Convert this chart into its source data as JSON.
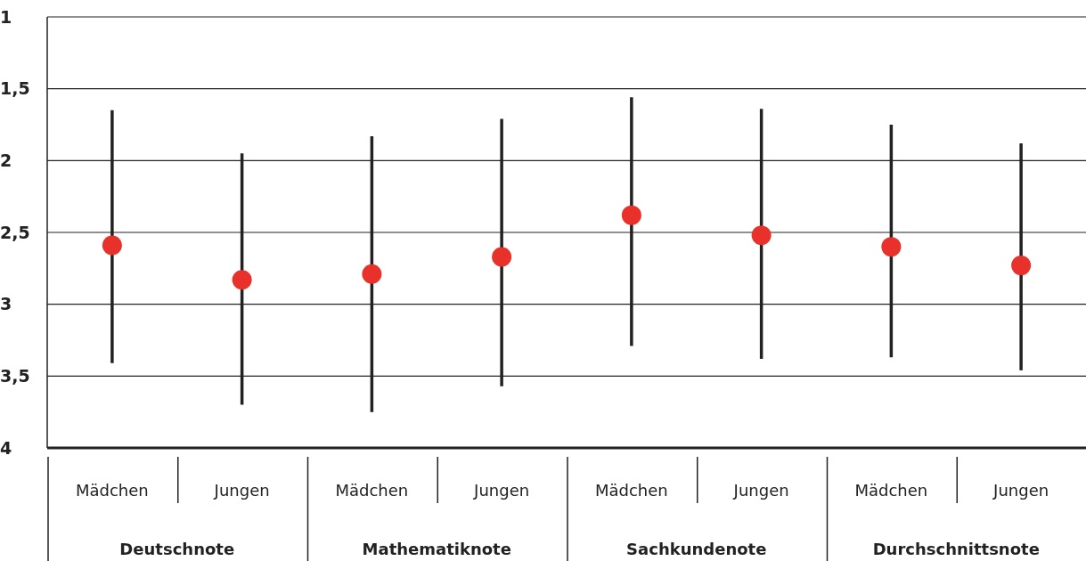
{
  "chart_data": {
    "type": "scatter",
    "categories": [
      "Mädchen",
      "Jungen",
      "Mädchen",
      "Jungen",
      "Mädchen",
      "Jungen",
      "Mädchen",
      "Jungen"
    ],
    "series": [
      {
        "color": "#e8312a",
        "values": [
          2.59,
          2.83,
          2.79,
          2.67,
          2.38,
          2.52,
          2.6,
          2.73
        ],
        "errors": [
          [
            1.65,
            3.41
          ],
          [
            1.95,
            3.7
          ],
          [
            1.83,
            3.75
          ],
          [
            1.71,
            3.57
          ],
          [
            1.56,
            3.29
          ],
          [
            1.64,
            3.38
          ],
          [
            1.75,
            3.37
          ],
          [
            1.88,
            3.46
          ]
        ]
      }
    ],
    "annotations": [
      "Deutschnote",
      "Mathematiknote",
      "Sachkundenote",
      "Durchschnittsnote"
    ],
    "ylim": [
      4,
      1
    ],
    "yticks": [
      1,
      {
        "value": 1.5,
        "label": "1,5"
      },
      2,
      {
        "value": 2.5,
        "label": "2,5"
      },
      3,
      {
        "value": 3.5,
        "label": "3,5"
      },
      4
    ],
    "grid": "y",
    "marker": "circle"
  }
}
